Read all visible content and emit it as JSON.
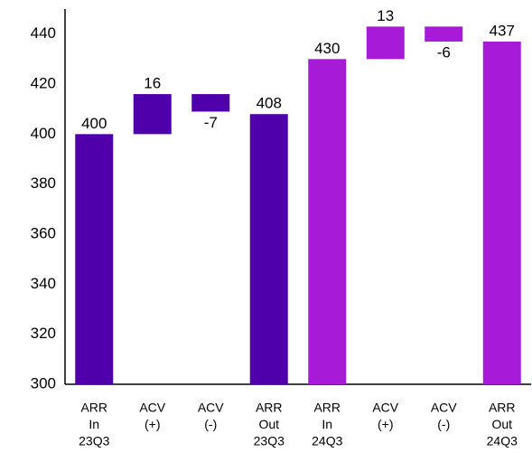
{
  "chart_data": {
    "type": "waterfall",
    "categories": [
      [
        "ARR",
        "In",
        "23Q3"
      ],
      [
        "ACV",
        "(+)"
      ],
      [
        "ACV",
        "(-)"
      ],
      [
        "ARR",
        "Out",
        "23Q3"
      ],
      [
        "ARR",
        "In",
        "24Q3"
      ],
      [
        "ACV",
        "(+)"
      ],
      [
        "ACV",
        "(-)"
      ],
      [
        "ARR",
        "Out",
        "24Q3"
      ]
    ],
    "values": [
      400,
      16,
      -7,
      408,
      430,
      13,
      -6,
      437
    ],
    "measure": [
      "absolute",
      "relative",
      "relative",
      "absolute",
      "absolute",
      "relative",
      "relative",
      "absolute"
    ],
    "colors": [
      "#5000aa",
      "#5000aa",
      "#5000aa",
      "#5000aa",
      "#a61ad8",
      "#a61ad8",
      "#a61ad8",
      "#a61ad8"
    ],
    "ylim": [
      300,
      450
    ],
    "yticks": [
      300,
      320,
      340,
      360,
      380,
      400,
      420,
      440
    ],
    "grid": false
  }
}
